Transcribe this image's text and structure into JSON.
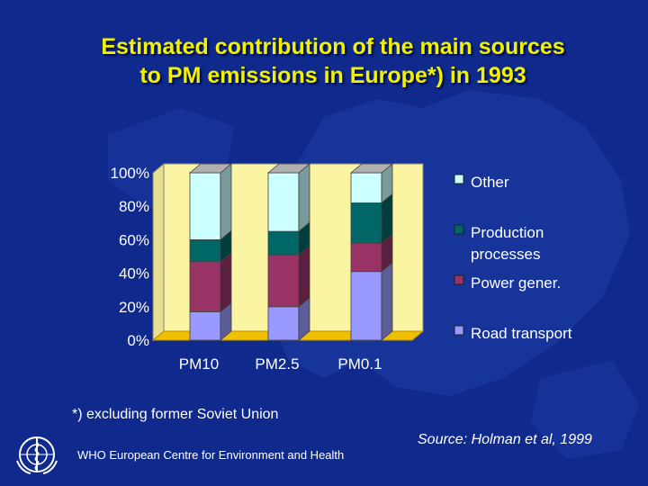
{
  "title": {
    "line1": "Estimated contribution of the main sources",
    "line2": "to PM emissions in Europe*) in 1993"
  },
  "footnote": "*) excluding former Soviet Union",
  "source": "Source: Holman et al, 1999",
  "organization": "WHO European Centre for Environment and Health",
  "logo_icon": "who-emblem-icon",
  "colors": {
    "background": "#0f2a8c",
    "title": "#f2f200",
    "plot_wall": "#fbf5a3",
    "plot_floor": "#f0c000"
  },
  "chart_data": {
    "type": "bar",
    "stacked": true,
    "three_d": true,
    "categories": [
      "PM10",
      "PM2.5",
      "PM0.1"
    ],
    "series": [
      {
        "name": "Road transport",
        "color": "#9999ff",
        "values": [
          17,
          20,
          41
        ]
      },
      {
        "name": "Power gener.",
        "color": "#993366",
        "values": [
          30,
          31,
          17
        ]
      },
      {
        "name": "Production processes",
        "color": "#006666",
        "values": [
          13,
          14,
          24
        ]
      },
      {
        "name": "Other",
        "color": "#ccffff",
        "values": [
          40,
          35,
          18
        ]
      }
    ],
    "yticks": [
      "0%",
      "20%",
      "40%",
      "60%",
      "80%",
      "100%"
    ],
    "ylim": [
      0,
      100
    ],
    "legend_position": "right",
    "legend_order": [
      "Other",
      "Production processes",
      "Power gener.",
      "Road transport"
    ],
    "legend_lines": {
      "Other": [
        "Other"
      ],
      "Production processes": [
        "Production",
        "processes"
      ],
      "Power gener.": [
        "Power gener."
      ],
      "Road transport": [
        "Road transport"
      ]
    }
  }
}
